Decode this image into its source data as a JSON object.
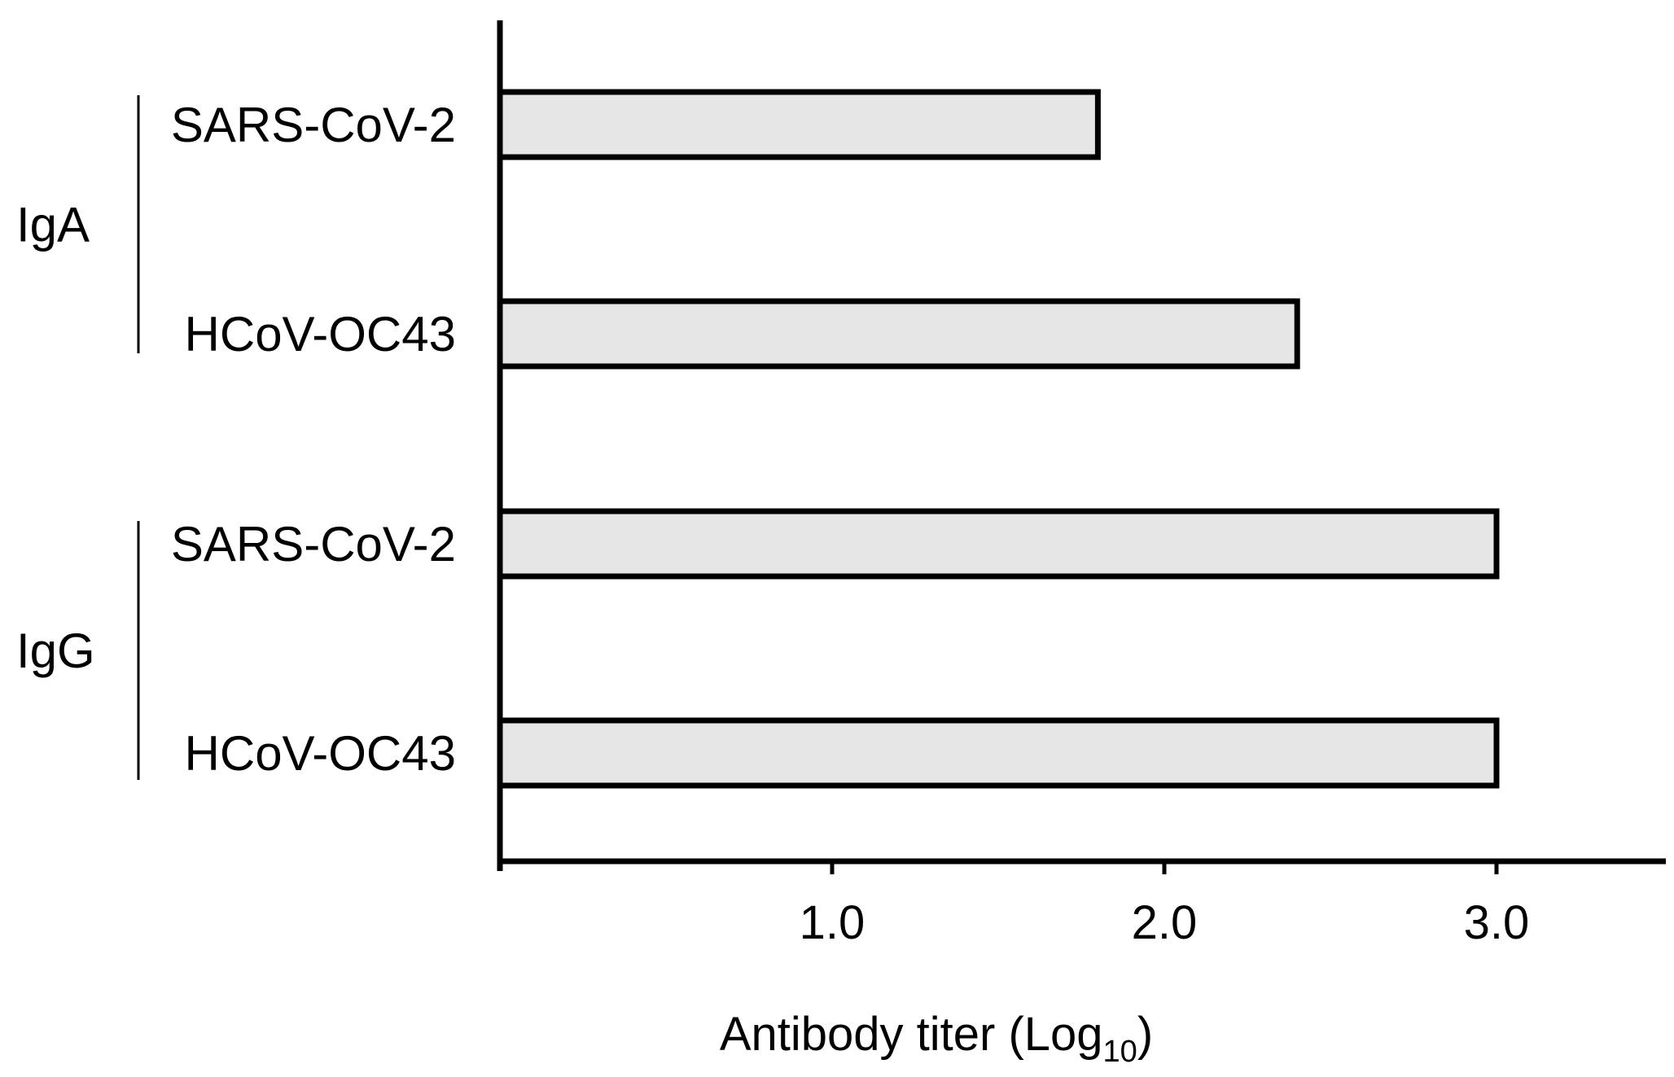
{
  "chart_data": {
    "type": "bar",
    "orientation": "horizontal",
    "groups": [
      {
        "name": "IgA",
        "categories": [
          "SARS-CoV-2",
          "HCoV-OC43"
        ],
        "values": [
          1.8,
          2.4
        ]
      },
      {
        "name": "IgG",
        "categories": [
          "SARS-CoV-2",
          "HCoV-OC43"
        ],
        "values": [
          3.0,
          3.0
        ]
      }
    ],
    "xlabel": "Antibody  titer (Log",
    "xlabel_subscript": "10",
    "xlabel_suffix": ")",
    "xlim": [
      0,
      3.5
    ],
    "xticks": [
      1.0,
      2.0,
      3.0
    ],
    "xtick_labels": [
      "1.0",
      "2.0",
      "3.0"
    ],
    "grid": false,
    "legend": "none",
    "bar_fill": "#e6e6e6",
    "bar_stroke": "#000000"
  }
}
